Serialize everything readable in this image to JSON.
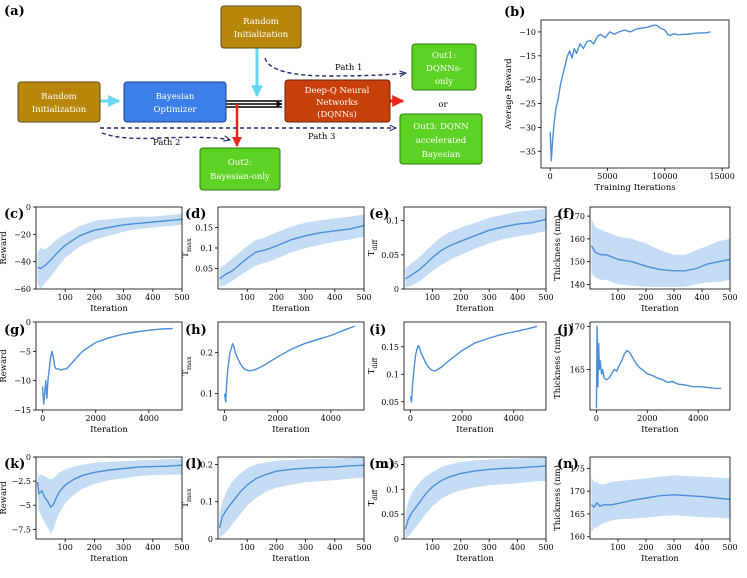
{
  "colors": {
    "line": "#4a8fd8",
    "band": "#c5dcf5",
    "gold": "#b8860b",
    "blue": "#3d7fe8",
    "red": "#c8410b",
    "green": "#5ed224",
    "cyan": "#66d6f2",
    "arrow_red": "#e8261c",
    "dash": "#1f2a6b"
  },
  "diagram": {
    "label": "(a)",
    "boxes": [
      {
        "id": "rand1",
        "lines": [
          "Random",
          "Initialization"
        ],
        "fill": "#b8860b"
      },
      {
        "id": "rand2",
        "lines": [
          "Random",
          "Initialization"
        ],
        "fill": "#b8860b"
      },
      {
        "id": "bayes",
        "lines": [
          "Bayesian",
          "Optimizer"
        ],
        "fill": "#3d7fe8"
      },
      {
        "id": "dqnn",
        "lines": [
          "Deep-Q Neural",
          "Networks",
          "(DQNNs)"
        ],
        "fill": "#c8410b"
      },
      {
        "id": "out1",
        "lines": [
          "Out1:",
          "DQNNs-",
          "only"
        ],
        "fill": "#5ed224"
      },
      {
        "id": "out2",
        "lines": [
          "Out2:",
          "Bayesian-only"
        ],
        "fill": "#5ed224"
      },
      {
        "id": "out3",
        "lines": [
          "Out3: DQNN",
          "accelerated",
          "Bayesian"
        ],
        "fill": "#5ed224"
      }
    ],
    "path1": "Path 1",
    "path2": "Path 2",
    "path3": "Path 3",
    "or_text": "or"
  },
  "chart_data": [
    {
      "id": "b",
      "label": "(b)",
      "type": "line",
      "xlabel": "Training Iterations",
      "ylabel": "Average Reward",
      "xlim": [
        -800,
        15600
      ],
      "ylim": [
        -38.5,
        -7.5
      ],
      "xticks": [
        0,
        5000,
        10000,
        15000
      ],
      "yticks": [
        -35,
        -30,
        -25,
        -20,
        -15,
        -10
      ],
      "x": [
        0,
        100,
        200,
        350,
        500,
        700,
        900,
        1100,
        1300,
        1500,
        1700,
        1900,
        2100,
        2300,
        2600,
        2900,
        3200,
        3500,
        3800,
        4100,
        4400,
        4800,
        5200,
        5600,
        6000,
        6500,
        7000,
        7500,
        8000,
        8500,
        9000,
        9300,
        9600,
        10000,
        10300,
        10500,
        10800,
        11200,
        11600,
        12000,
        12500,
        13000,
        13500,
        14000
      ],
      "y": [
        -31,
        -37,
        -33,
        -29,
        -26,
        -24,
        -21,
        -19,
        -17,
        -15,
        -14,
        -15.5,
        -13.5,
        -14.5,
        -12.5,
        -13.5,
        -12,
        -11.8,
        -12.5,
        -11,
        -10.5,
        -11.2,
        -10,
        -10.5,
        -10,
        -9.6,
        -10,
        -9.4,
        -9.2,
        -9,
        -8.6,
        -8.6,
        -9.2,
        -9.6,
        -10.6,
        -10.7,
        -10.4,
        -10.6,
        -10.5,
        -10.5,
        -10.3,
        -10.2,
        -10.2,
        -10
      ]
    },
    {
      "id": "c",
      "label": "(c)",
      "type": "line",
      "xlabel": "Iteration",
      "ylabel": "Reward",
      "xlim": [
        0,
        500
      ],
      "ylim": [
        -60,
        0
      ],
      "xticks": [
        100,
        200,
        300,
        400,
        500
      ],
      "yticks": [
        -60,
        -40,
        -20,
        0
      ],
      "x": [
        5,
        15,
        30,
        50,
        75,
        100,
        150,
        200,
        250,
        300,
        350,
        400,
        450,
        500
      ],
      "y": [
        -44,
        -45,
        -43,
        -39,
        -33,
        -28,
        -21,
        -17,
        -15,
        -13,
        -12,
        -11,
        -10,
        -9
      ],
      "lo": [
        -55,
        -60,
        -56,
        -51,
        -44,
        -37,
        -29,
        -24,
        -21,
        -18,
        -16,
        -15,
        -14,
        -13
      ],
      "hi": [
        -34,
        -30,
        -31,
        -28,
        -23,
        -20,
        -14,
        -10,
        -9,
        -8,
        -7,
        -7,
        -6,
        -5
      ]
    },
    {
      "id": "d",
      "label": "(d)",
      "type": "line",
      "xlabel": "Iteration",
      "ylabel": "T",
      "ylabel_sub": "max",
      "xlim": [
        0,
        500
      ],
      "ylim": [
        0,
        0.2
      ],
      "xticks": [
        100,
        200,
        300,
        400,
        500
      ],
      "yticks": [
        0.05,
        0.1,
        0.15
      ],
      "x": [
        5,
        25,
        50,
        75,
        100,
        130,
        160,
        200,
        250,
        300,
        350,
        400,
        450,
        500
      ],
      "y": [
        0.025,
        0.035,
        0.045,
        0.06,
        0.075,
        0.09,
        0.095,
        0.105,
        0.12,
        0.13,
        0.137,
        0.142,
        0.146,
        0.155
      ],
      "lo": [
        0.005,
        0.01,
        0.02,
        0.033,
        0.045,
        0.057,
        0.064,
        0.074,
        0.089,
        0.1,
        0.108,
        0.115,
        0.12,
        0.128
      ],
      "hi": [
        0.05,
        0.06,
        0.075,
        0.09,
        0.105,
        0.12,
        0.125,
        0.138,
        0.152,
        0.162,
        0.168,
        0.172,
        0.176,
        0.182
      ]
    },
    {
      "id": "e",
      "label": "(e)",
      "type": "line",
      "xlabel": "Iteration",
      "ylabel": "T",
      "ylabel_sub": "diff",
      "xlim": [
        0,
        500
      ],
      "ylim": [
        0,
        0.12
      ],
      "xticks": [
        100,
        200,
        300,
        400,
        500
      ],
      "yticks": [
        0,
        0.05,
        0.1
      ],
      "x": [
        5,
        25,
        50,
        75,
        100,
        130,
        160,
        200,
        250,
        300,
        350,
        400,
        450,
        500
      ],
      "y": [
        0.015,
        0.02,
        0.027,
        0.036,
        0.046,
        0.056,
        0.063,
        0.07,
        0.078,
        0.086,
        0.091,
        0.095,
        0.097,
        0.102
      ],
      "lo": [
        0.002,
        0.005,
        0.01,
        0.018,
        0.026,
        0.035,
        0.042,
        0.05,
        0.059,
        0.067,
        0.073,
        0.077,
        0.08,
        0.085
      ],
      "hi": [
        0.03,
        0.037,
        0.045,
        0.055,
        0.065,
        0.076,
        0.083,
        0.09,
        0.097,
        0.104,
        0.109,
        0.113,
        0.115,
        0.118
      ]
    },
    {
      "id": "f",
      "label": "(f)",
      "type": "line",
      "xlabel": "Iteration",
      "ylabel": "Thickness (nm)",
      "xlim": [
        0,
        500
      ],
      "ylim": [
        138,
        174
      ],
      "xticks": [
        100,
        200,
        300,
        400,
        500
      ],
      "yticks": [
        140,
        150,
        160,
        170
      ],
      "x": [
        5,
        20,
        40,
        60,
        80,
        100,
        150,
        200,
        250,
        300,
        340,
        380,
        420,
        460,
        500
      ],
      "y": [
        157,
        154,
        153,
        153,
        152,
        151,
        150,
        148,
        146.5,
        146,
        146,
        147,
        149,
        150,
        151
      ],
      "lo": [
        145,
        143,
        142,
        142,
        141,
        140,
        139.5,
        139,
        139,
        139,
        139,
        140,
        141,
        141,
        142
      ],
      "hi": [
        169,
        165,
        164,
        163,
        162,
        161,
        160,
        158,
        155,
        153,
        153,
        155,
        157,
        159,
        160
      ]
    },
    {
      "id": "g",
      "label": "(g)",
      "type": "line",
      "xlabel": "Iteration",
      "ylabel": "Reward",
      "xlim": [
        -250,
        5250
      ],
      "ylim": [
        -15,
        0
      ],
      "xticks": [
        0,
        2000,
        4000
      ],
      "yticks": [
        -15,
        -10,
        -5,
        0
      ],
      "x": [
        0,
        40,
        80,
        120,
        160,
        200,
        250,
        300,
        350,
        400,
        450,
        500,
        600,
        700,
        800,
        900,
        1000,
        1200,
        1500,
        2000,
        2500,
        3000,
        3500,
        4000,
        4500,
        4900
      ],
      "y": [
        -11,
        -14,
        -12,
        -10,
        -13,
        -10,
        -8,
        -6,
        -5,
        -6,
        -7.5,
        -8,
        -8,
        -8.2,
        -8,
        -8,
        -7.5,
        -6.5,
        -5,
        -3.5,
        -2.7,
        -2.1,
        -1.7,
        -1.4,
        -1.2,
        -1.1
      ]
    },
    {
      "id": "h",
      "label": "(h)",
      "type": "line",
      "xlabel": "Iteration",
      "ylabel": "T",
      "ylabel_sub": "max",
      "xlim": [
        -250,
        5250
      ],
      "ylim": [
        0.06,
        0.275
      ],
      "xticks": [
        0,
        2000,
        4000
      ],
      "yticks": [
        0.1,
        0.2
      ],
      "x": [
        0,
        40,
        80,
        120,
        160,
        200,
        250,
        300,
        350,
        400,
        500,
        600,
        700,
        800,
        900,
        1000,
        1200,
        1500,
        2000,
        2500,
        3000,
        3500,
        4000,
        4500,
        4900
      ],
      "y": [
        0.1,
        0.08,
        0.13,
        0.16,
        0.18,
        0.2,
        0.21,
        0.222,
        0.215,
        0.2,
        0.185,
        0.172,
        0.163,
        0.158,
        0.156,
        0.156,
        0.16,
        0.17,
        0.19,
        0.208,
        0.222,
        0.232,
        0.242,
        0.255,
        0.265
      ]
    },
    {
      "id": "i",
      "label": "(i)",
      "type": "line",
      "xlabel": "Iteration",
      "ylabel": "T",
      "ylabel_sub": "diff",
      "xlim": [
        -250,
        5250
      ],
      "ylim": [
        0.035,
        0.195
      ],
      "xticks": [
        0,
        2000,
        4000
      ],
      "yticks": [
        0.05,
        0.1,
        0.15
      ],
      "x": [
        0,
        40,
        80,
        120,
        160,
        200,
        250,
        300,
        350,
        400,
        500,
        600,
        700,
        800,
        900,
        1000,
        1200,
        1500,
        2000,
        2500,
        3000,
        3500,
        4000,
        4500,
        4900
      ],
      "y": [
        0.06,
        0.05,
        0.08,
        0.1,
        0.12,
        0.135,
        0.145,
        0.152,
        0.148,
        0.14,
        0.13,
        0.12,
        0.113,
        0.108,
        0.106,
        0.107,
        0.113,
        0.125,
        0.143,
        0.157,
        0.165,
        0.172,
        0.177,
        0.182,
        0.187
      ]
    },
    {
      "id": "j",
      "label": "(j)",
      "type": "line",
      "xlabel": "Iteration",
      "ylabel": "Thickness (nm)",
      "xlim": [
        -250,
        5250
      ],
      "ylim": [
        160.3,
        170.5
      ],
      "xticks": [
        0,
        2000,
        4000
      ],
      "yticks": [
        165,
        170
      ],
      "x": [
        0,
        30,
        60,
        90,
        120,
        150,
        200,
        250,
        300,
        400,
        500,
        600,
        700,
        800,
        900,
        1000,
        1100,
        1200,
        1300,
        1400,
        1500,
        1600,
        1700,
        1800,
        2000,
        2200,
        2400,
        2600,
        2800,
        3000,
        3200,
        3500,
        3800,
        4100,
        4400,
        4700,
        4900
      ],
      "y": [
        160.5,
        170,
        163,
        168,
        165,
        166,
        164.5,
        165,
        164,
        163.8,
        164,
        164.5,
        165,
        164.8,
        165.5,
        166,
        166.8,
        167.2,
        167,
        166.5,
        166,
        165.5,
        165.2,
        165,
        164.5,
        164.3,
        164,
        163.8,
        163.5,
        163.6,
        163.3,
        163.2,
        163,
        163,
        162.9,
        162.8,
        162.8
      ]
    },
    {
      "id": "k",
      "label": "(k)",
      "type": "line",
      "xlabel": "Iteration",
      "ylabel": "Reward",
      "xlim": [
        0,
        500
      ],
      "ylim": [
        -8.5,
        0
      ],
      "xticks": [
        100,
        200,
        300,
        400,
        500
      ],
      "yticks": [
        -7.5,
        -5,
        -2.5,
        0
      ],
      "x": [
        5,
        10,
        20,
        30,
        40,
        50,
        60,
        70,
        80,
        100,
        130,
        160,
        200,
        250,
        300,
        350,
        400,
        450,
        500
      ],
      "y": [
        -2.6,
        -3.8,
        -3.5,
        -4.2,
        -4.6,
        -5.2,
        -4.9,
        -4.2,
        -3.6,
        -2.9,
        -2.3,
        -1.9,
        -1.6,
        -1.35,
        -1.2,
        -1.05,
        -1.0,
        -0.95,
        -0.85
      ],
      "lo": [
        -3.8,
        -5.5,
        -6.2,
        -6.8,
        -7.3,
        -7.9,
        -7.5,
        -6.5,
        -5.8,
        -4.8,
        -3.9,
        -3.3,
        -2.8,
        -2.4,
        -2.2,
        -2.0,
        -1.9,
        -1.85,
        -1.8
      ],
      "hi": [
        -1.5,
        -2.0,
        -1.8,
        -2.0,
        -2.2,
        -2.3,
        -2.2,
        -1.9,
        -1.6,
        -1.3,
        -1.0,
        -0.8,
        -0.6,
        -0.5,
        -0.45,
        -0.35,
        -0.3,
        -0.25,
        -0.2
      ]
    },
    {
      "id": "l",
      "label": "(l)",
      "type": "line",
      "xlabel": "Iteration",
      "ylabel": "T",
      "ylabel_sub": "max",
      "xlim": [
        0,
        500
      ],
      "ylim": [
        0,
        0.22
      ],
      "xticks": [
        100,
        200,
        300,
        400,
        500
      ],
      "yticks": [
        0,
        0.1,
        0.2
      ],
      "x": [
        5,
        15,
        30,
        50,
        75,
        100,
        130,
        160,
        200,
        250,
        300,
        350,
        400,
        450,
        500
      ],
      "y": [
        0.03,
        0.06,
        0.08,
        0.1,
        0.125,
        0.145,
        0.162,
        0.172,
        0.182,
        0.187,
        0.19,
        0.192,
        0.193,
        0.196,
        0.198
      ],
      "lo": [
        0.0,
        0.01,
        0.02,
        0.04,
        0.065,
        0.09,
        0.11,
        0.125,
        0.138,
        0.146,
        0.152,
        0.155,
        0.158,
        0.162,
        0.165
      ],
      "hi": [
        0.07,
        0.1,
        0.13,
        0.155,
        0.175,
        0.19,
        0.2,
        0.205,
        0.21,
        0.212,
        0.214,
        0.215,
        0.216,
        0.218,
        0.22
      ]
    },
    {
      "id": "m",
      "label": "(m)",
      "type": "line",
      "xlabel": "Iteration",
      "ylabel": "T",
      "ylabel_sub": "diff",
      "xlim": [
        0,
        500
      ],
      "ylim": [
        0,
        0.165
      ],
      "xticks": [
        100,
        200,
        300,
        400,
        500
      ],
      "yticks": [
        0,
        0.05,
        0.1,
        0.15
      ],
      "x": [
        5,
        15,
        30,
        50,
        75,
        100,
        130,
        160,
        200,
        250,
        300,
        350,
        400,
        450,
        500
      ],
      "y": [
        0.02,
        0.04,
        0.055,
        0.07,
        0.09,
        0.105,
        0.117,
        0.125,
        0.132,
        0.137,
        0.14,
        0.142,
        0.143,
        0.145,
        0.147
      ],
      "lo": [
        0.0,
        0.005,
        0.015,
        0.03,
        0.05,
        0.066,
        0.08,
        0.09,
        0.098,
        0.104,
        0.108,
        0.11,
        0.112,
        0.115,
        0.117
      ],
      "hi": [
        0.05,
        0.075,
        0.095,
        0.11,
        0.125,
        0.135,
        0.144,
        0.15,
        0.155,
        0.158,
        0.16,
        0.161,
        0.162,
        0.163,
        0.164
      ]
    },
    {
      "id": "n",
      "label": "(n)",
      "type": "line",
      "xlabel": "Iteration",
      "ylabel": "Thickness (nm)",
      "xlim": [
        0,
        500
      ],
      "ylim": [
        159.5,
        177.5
      ],
      "xticks": [
        100,
        200,
        300,
        400,
        500
      ],
      "yticks": [
        160,
        165,
        170,
        175
      ],
      "x": [
        5,
        15,
        25,
        35,
        50,
        75,
        100,
        150,
        200,
        250,
        300,
        350,
        400,
        450,
        500
      ],
      "y": [
        167,
        166.5,
        167.5,
        166.7,
        167,
        167,
        167.3,
        168,
        168.5,
        169,
        169.2,
        169,
        168.8,
        168.5,
        168.2
      ],
      "lo": [
        161,
        162,
        162,
        162.5,
        163,
        163.5,
        163.8,
        164,
        164.2,
        164.5,
        164.7,
        164.5,
        164.3,
        164.2,
        164
      ],
      "hi": [
        173,
        172,
        172,
        171.5,
        171.5,
        172,
        172.2,
        172.5,
        172.8,
        173.2,
        173.5,
        173.3,
        173.2,
        173,
        172.8
      ]
    }
  ]
}
